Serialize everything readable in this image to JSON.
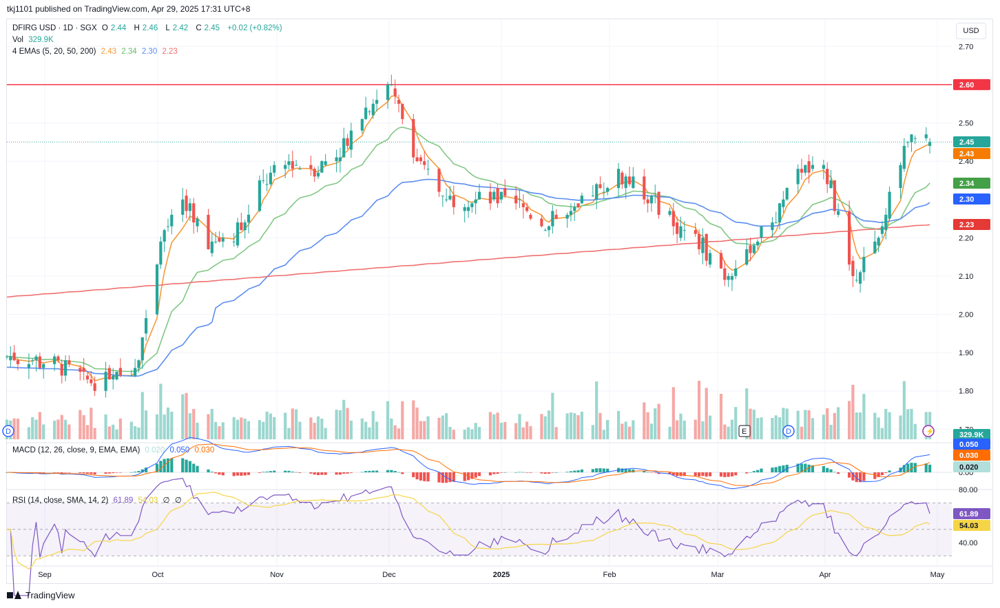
{
  "header": {
    "published": "tkj1101 published on TradingView.com, Apr 29, 2025 17:31 UTC+8"
  },
  "legend": {
    "symbol": "DFIRG USD · 1D · SGX",
    "o_label": "O",
    "o": "2.44",
    "h_label": "H",
    "h": "2.46",
    "l_label": "L",
    "l": "2.42",
    "c_label": "C",
    "c": "2.45",
    "change": "+0.02 (+0.82%)",
    "vol_label": "Vol",
    "vol": "329.9K",
    "ema_label": "4 EMAs (5, 20, 50, 200)",
    "ema5": "2.43",
    "ema20": "2.34",
    "ema50": "2.30",
    "ema200": "2.23"
  },
  "macd_legend": {
    "label": "MACD (12, 26, close, 9, EMA, EMA)",
    "hist": "0.020",
    "macd": "0.050",
    "signal": "0.030"
  },
  "rsi_legend": {
    "label": "RSI (14, close, SMA, 14, 2)",
    "rsi": "61.89",
    "sma": "54.03",
    "extra1": "∅",
    "extra2": "∅"
  },
  "currency_button": "USD",
  "badges": {
    "resistance": "2.60",
    "last": "2.45",
    "ema5": "2.43",
    "ema20": "2.34",
    "ema50": "2.30",
    "ema200": "2.23",
    "vol": "329.9K",
    "macd": "0.050",
    "signal": "0.030",
    "hist": "0.020",
    "rsi": "61.89",
    "rsi_sma": "54.03"
  },
  "price_axis_labels": [
    "2.70",
    "2.50",
    "2.40",
    "2.20",
    "2.10",
    "2.00",
    "1.90",
    "1.80",
    "1.70"
  ],
  "rsi_axis_labels": [
    "80.00",
    "40.00"
  ],
  "macd_axis_label": "0.00",
  "time_axis_labels": [
    "Sep",
    "Oct",
    "Nov",
    "Dec",
    "2025",
    "Feb",
    "Mar",
    "Apr",
    "May"
  ],
  "event_markers": {
    "earnings": "E",
    "dividend": "D"
  },
  "footer": {
    "brand": "TradingView"
  },
  "colors": {
    "up": "#26a69a",
    "down": "#ef5350",
    "ema5": "#f59a3c",
    "ema20": "#81c784",
    "ema50": "#5b8def",
    "ema200": "#f06f6f",
    "resistance": "#f23645",
    "rsi": "#7e57c2",
    "rsi_sma": "#f5d547"
  },
  "chart_data": {
    "type": "candlestick",
    "symbol": "DFIRG USD",
    "timeframe": "1D",
    "exchange": "SGX",
    "ylim": [
      1.7,
      2.72
    ],
    "resistance_line": 2.6,
    "last_close": 2.45,
    "x_range": [
      "2024-08-20",
      "2025-05-05"
    ],
    "ohlc_anchor": [
      {
        "date": "2024-08-20",
        "c": 1.89
      },
      {
        "date": "2024-08-27",
        "c": 1.88
      },
      {
        "date": "2024-09-03",
        "c": 1.87
      },
      {
        "date": "2024-09-10",
        "c": 1.83
      },
      {
        "date": "2024-09-17",
        "c": 1.82
      },
      {
        "date": "2024-09-24",
        "c": 1.87
      },
      {
        "date": "2024-09-26",
        "c": 1.94
      },
      {
        "date": "2024-10-01",
        "c": 2.21
      },
      {
        "date": "2024-10-08",
        "c": 2.29
      },
      {
        "date": "2024-10-15",
        "c": 2.18
      },
      {
        "date": "2024-10-22",
        "c": 2.22
      },
      {
        "date": "2024-10-29",
        "c": 2.34
      },
      {
        "date": "2024-11-05",
        "c": 2.4
      },
      {
        "date": "2024-11-12",
        "c": 2.38
      },
      {
        "date": "2024-11-19",
        "c": 2.43
      },
      {
        "date": "2024-11-26",
        "c": 2.54
      },
      {
        "date": "2024-12-03",
        "c": 2.6
      },
      {
        "date": "2024-12-10",
        "c": 2.4
      },
      {
        "date": "2024-12-17",
        "c": 2.31
      },
      {
        "date": "2024-12-24",
        "c": 2.3
      },
      {
        "date": "2024-12-31",
        "c": 2.3
      },
      {
        "date": "2025-01-07",
        "c": 2.28
      },
      {
        "date": "2025-01-14",
        "c": 2.24
      },
      {
        "date": "2025-01-21",
        "c": 2.25
      },
      {
        "date": "2025-01-28",
        "c": 2.33
      },
      {
        "date": "2025-02-04",
        "c": 2.36
      },
      {
        "date": "2025-02-11",
        "c": 2.31
      },
      {
        "date": "2025-02-18",
        "c": 2.24
      },
      {
        "date": "2025-02-25",
        "c": 2.19
      },
      {
        "date": "2025-03-04",
        "c": 2.1
      },
      {
        "date": "2025-03-11",
        "c": 2.18
      },
      {
        "date": "2025-03-18",
        "c": 2.26
      },
      {
        "date": "2025-03-25",
        "c": 2.38
      },
      {
        "date": "2025-04-01",
        "c": 2.36
      },
      {
        "date": "2025-04-08",
        "c": 2.1
      },
      {
        "date": "2025-04-15",
        "c": 2.19
      },
      {
        "date": "2025-04-22",
        "c": 2.45
      },
      {
        "date": "2025-04-29",
        "c": 2.45
      }
    ],
    "ema_lines": [
      {
        "name": "EMA 5",
        "last": 2.43
      },
      {
        "name": "EMA 20",
        "last": 2.34
      },
      {
        "name": "EMA 50",
        "last": 2.3
      },
      {
        "name": "EMA 200",
        "last": 2.23
      }
    ],
    "volume_last": "329.9K",
    "macd": {
      "macd": 0.05,
      "signal": 0.03,
      "hist": 0.02
    },
    "rsi": {
      "rsi": 61.89,
      "sma": 54.03,
      "levels": [
        70,
        50,
        30
      ]
    }
  }
}
